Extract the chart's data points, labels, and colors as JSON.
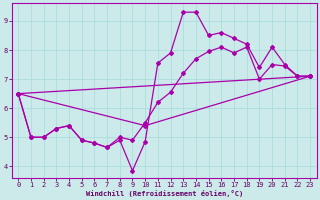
{
  "xlabel": "Windchill (Refroidissement éolien,°C)",
  "bg_color": "#cceaea",
  "line_color": "#aa00aa",
  "grid_color": "#aadddd",
  "yticks": [
    4,
    5,
    6,
    7,
    8,
    9
  ],
  "xticks": [
    0,
    1,
    2,
    3,
    4,
    5,
    6,
    7,
    8,
    9,
    10,
    11,
    12,
    13,
    14,
    15,
    16,
    17,
    18,
    19,
    20,
    21,
    22,
    23
  ],
  "xlim": [
    -0.5,
    23.5
  ],
  "ylim": [
    3.6,
    9.6
  ],
  "line1_x": [
    0,
    1,
    2,
    3,
    4,
    5,
    6,
    7,
    8,
    9,
    10,
    11,
    12,
    13,
    14,
    15,
    16,
    17,
    18,
    19,
    20,
    21,
    22,
    23
  ],
  "line1_y": [
    6.5,
    5.0,
    5.0,
    5.3,
    5.4,
    4.9,
    4.8,
    4.65,
    4.9,
    3.85,
    4.85,
    7.55,
    7.9,
    9.3,
    9.3,
    8.5,
    8.6,
    8.4,
    8.2,
    7.4,
    8.1,
    7.5,
    7.1,
    7.1
  ],
  "line2_x": [
    0,
    1,
    2,
    3,
    4,
    5,
    6,
    7,
    8,
    9,
    10,
    11,
    12,
    13,
    14,
    15,
    16,
    17,
    18,
    19,
    20,
    21,
    22,
    23
  ],
  "line2_y": [
    6.5,
    5.0,
    5.0,
    5.3,
    5.4,
    4.9,
    4.8,
    4.65,
    5.0,
    4.9,
    5.5,
    6.2,
    6.55,
    7.2,
    7.7,
    7.95,
    8.1,
    7.9,
    8.1,
    7.0,
    7.5,
    7.45,
    7.1,
    7.1
  ],
  "line3_x": [
    0,
    23
  ],
  "line3_y": [
    6.5,
    7.1
  ],
  "line4_x": [
    0,
    10,
    23
  ],
  "line4_y": [
    6.5,
    5.4,
    7.1
  ]
}
